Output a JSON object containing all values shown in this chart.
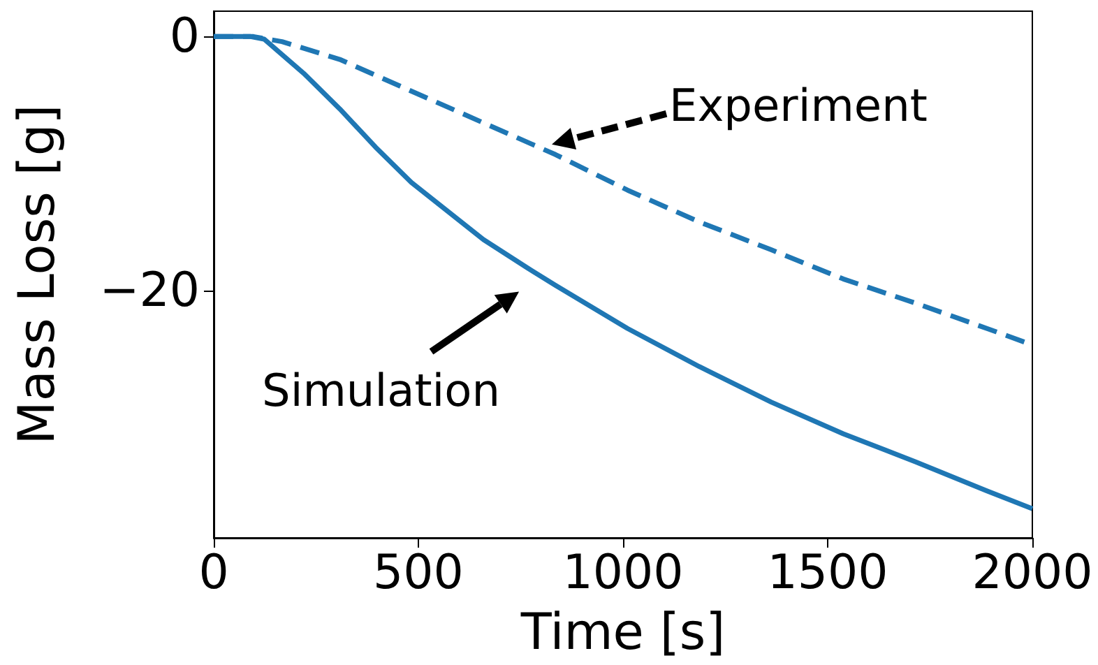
{
  "chart_data": {
    "type": "line",
    "xlabel": "Time [s]",
    "ylabel": "Mass Loss [g]",
    "xlim": [
      0,
      2000
    ],
    "xticks": [
      0,
      500,
      1000,
      1500,
      2000
    ],
    "ylim": [
      -39.5,
      2
    ],
    "yticks": [
      0,
      {
        "value": -20,
        "label": "−20"
      }
    ],
    "grid": false,
    "marker": "none",
    "series": [
      {
        "color": "#1f77b4",
        "line_style": "dashed",
        "x": [
          0,
          97,
          167,
          308,
          483,
          659,
          835,
          1011,
          1186,
          1362,
          1538,
          1714,
          1889,
          2000
        ],
        "values": [
          0,
          0,
          -0.4,
          -1.8,
          -4.3,
          -6.8,
          -9.3,
          -12.1,
          -14.6,
          -16.8,
          -19.1,
          -21.0,
          -23.0,
          -24.3
        ]
      },
      {
        "color": "#1f77b4",
        "line_style": "solid",
        "x": [
          0,
          90,
          123,
          220,
          308,
          395,
          483,
          659,
          765,
          835,
          1011,
          1186,
          1362,
          1538,
          1714,
          1889,
          2000
        ],
        "values": [
          0,
          0,
          -0.2,
          -2.9,
          -5.7,
          -8.7,
          -11.5,
          -16.0,
          -18.2,
          -19.6,
          -23.0,
          -26.0,
          -28.8,
          -31.3,
          -33.5,
          -35.8,
          -37.2
        ]
      }
    ],
    "annotations": [
      {
        "text": "Experiment",
        "x": 826,
        "y": -8.5
      },
      {
        "text": "Simulation",
        "x": 791,
        "y": -19.1
      }
    ]
  }
}
